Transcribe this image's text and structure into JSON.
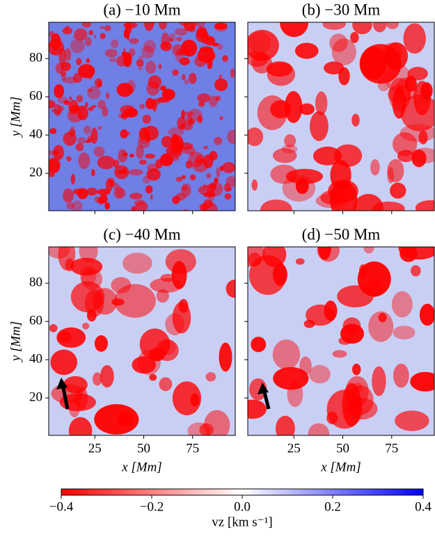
{
  "chart_data": [
    {
      "type": "image",
      "title": "(a) −10 Mm",
      "ylabel": "y [Mm]",
      "xlim": [
        1.4,
        96.8
      ],
      "ylim": [
        0.4,
        99
      ],
      "yticks": [
        20,
        40,
        60,
        80
      ]
    },
    {
      "type": "image",
      "title": "(b) −30 Mm",
      "xlim": [
        1.4,
        96.8
      ],
      "ylim": [
        0.4,
        99
      ]
    },
    {
      "type": "image",
      "title": "(c) −40 Mm",
      "xlabel": "x [Mm]",
      "ylabel": "y [Mm]",
      "xlim": [
        1.4,
        96.8
      ],
      "ylim": [
        0.4,
        99
      ],
      "xticks": [
        25,
        50,
        75
      ],
      "yticks": [
        20,
        40,
        60,
        80
      ]
    },
    {
      "type": "image",
      "title": "(d) −50 Mm",
      "xlabel": "x [Mm]",
      "xlim": [
        1.4,
        96.8
      ],
      "ylim": [
        0.4,
        99
      ],
      "xticks": [
        25,
        50,
        75
      ]
    },
    {
      "type": "colorbar",
      "xlabel": "vz [km s⁻¹]",
      "xlim": [
        -0.4,
        0.4
      ],
      "colors": [
        "#ff0000",
        "#ffffff",
        "#0000ff"
      ],
      "xticks": [
        {
          "value": -0.4,
          "label": "−0.4"
        },
        {
          "value": -0.2,
          "label": "−0.2"
        },
        {
          "value": 0,
          "label": "0.0"
        },
        0.2,
        0.4
      ]
    }
  ]
}
